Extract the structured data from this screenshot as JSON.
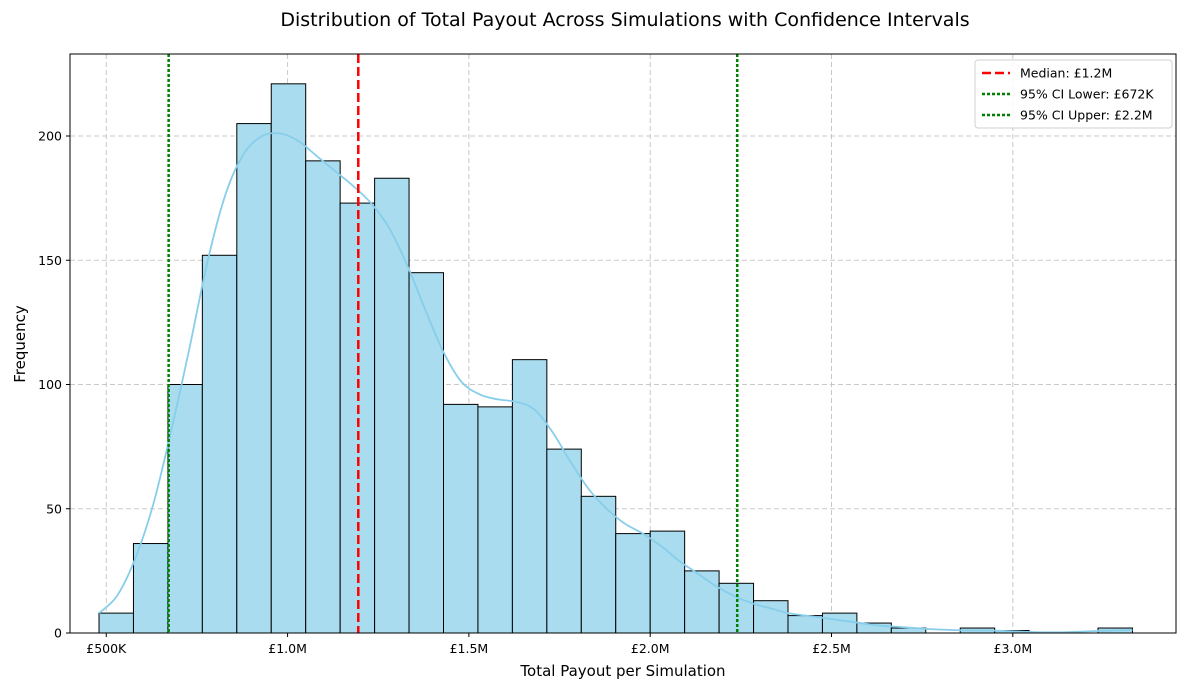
{
  "chart_data": {
    "type": "bar",
    "subtype": "histogram",
    "title": "Distribution of Total Payout Across Simulations with Confidence Intervals",
    "xlabel": "Total Payout per Simulation",
    "ylabel": "Frequency",
    "xlim": [
      400000,
      3450000
    ],
    "ylim": [
      0,
      233
    ],
    "grid": true,
    "grid_style": "dashed",
    "legend_position": "top-right",
    "x_ticks": [
      {
        "value": 500000,
        "label": "£500K"
      },
      {
        "value": 1000000,
        "label": "£1.0M"
      },
      {
        "value": 1500000,
        "label": "£1.5M"
      },
      {
        "value": 2000000,
        "label": "£2.0M"
      },
      {
        "value": 2500000,
        "label": "£2.5M"
      },
      {
        "value": 3000000,
        "label": "£3.0M"
      }
    ],
    "y_ticks": [
      {
        "value": 0,
        "label": "0"
      },
      {
        "value": 50,
        "label": "50"
      },
      {
        "value": 100,
        "label": "100"
      },
      {
        "value": 150,
        "label": "150"
      },
      {
        "value": 200,
        "label": "200"
      }
    ],
    "bins": [
      {
        "x0": 480000,
        "x1": 575000,
        "count": 8
      },
      {
        "x0": 575000,
        "x1": 670000,
        "count": 36
      },
      {
        "x0": 670000,
        "x1": 765000,
        "count": 100
      },
      {
        "x0": 765000,
        "x1": 860000,
        "count": 152
      },
      {
        "x0": 860000,
        "x1": 955000,
        "count": 205
      },
      {
        "x0": 955000,
        "x1": 1050000,
        "count": 221
      },
      {
        "x0": 1050000,
        "x1": 1145000,
        "count": 190
      },
      {
        "x0": 1145000,
        "x1": 1240000,
        "count": 173
      },
      {
        "x0": 1240000,
        "x1": 1335000,
        "count": 183
      },
      {
        "x0": 1335000,
        "x1": 1430000,
        "count": 145
      },
      {
        "x0": 1430000,
        "x1": 1525000,
        "count": 92
      },
      {
        "x0": 1525000,
        "x1": 1620000,
        "count": 91
      },
      {
        "x0": 1620000,
        "x1": 1715000,
        "count": 110
      },
      {
        "x0": 1715000,
        "x1": 1810000,
        "count": 74
      },
      {
        "x0": 1810000,
        "x1": 1905000,
        "count": 55
      },
      {
        "x0": 1905000,
        "x1": 2000000,
        "count": 40
      },
      {
        "x0": 2000000,
        "x1": 2095000,
        "count": 41
      },
      {
        "x0": 2095000,
        "x1": 2190000,
        "count": 25
      },
      {
        "x0": 2190000,
        "x1": 2285000,
        "count": 20
      },
      {
        "x0": 2285000,
        "x1": 2380000,
        "count": 13
      },
      {
        "x0": 2380000,
        "x1": 2475000,
        "count": 7
      },
      {
        "x0": 2475000,
        "x1": 2570000,
        "count": 8
      },
      {
        "x0": 2570000,
        "x1": 2665000,
        "count": 4
      },
      {
        "x0": 2665000,
        "x1": 2760000,
        "count": 2
      },
      {
        "x0": 2760000,
        "x1": 2855000,
        "count": 0
      },
      {
        "x0": 2855000,
        "x1": 2950000,
        "count": 2
      },
      {
        "x0": 2950000,
        "x1": 3045000,
        "count": 1
      },
      {
        "x0": 3045000,
        "x1": 3140000,
        "count": 0
      },
      {
        "x0": 3140000,
        "x1": 3235000,
        "count": 0
      },
      {
        "x0": 3235000,
        "x1": 3330000,
        "count": 2
      }
    ],
    "kde": {
      "x": [
        480000,
        530000,
        580000,
        630000,
        680000,
        730000,
        780000,
        830000,
        880000,
        930000,
        980000,
        1030000,
        1080000,
        1130000,
        1180000,
        1230000,
        1280000,
        1330000,
        1380000,
        1430000,
        1480000,
        1530000,
        1580000,
        1630000,
        1680000,
        1730000,
        1780000,
        1830000,
        1880000,
        1930000,
        1980000,
        2030000,
        2080000,
        2130000,
        2180000,
        2230000,
        2280000,
        2330000,
        2380000,
        2430000,
        2480000,
        2530000,
        2580000,
        2630000,
        2680000,
        2730000,
        2780000,
        2830000,
        2880000,
        2930000,
        2980000,
        3030000,
        3080000,
        3130000,
        3180000,
        3230000,
        3280000,
        3330000
      ],
      "y": [
        8,
        15,
        30,
        52,
        82,
        115,
        150,
        177,
        193,
        200,
        201,
        198,
        192,
        186,
        180,
        173,
        163,
        148,
        130,
        113,
        101,
        96,
        94,
        93,
        90,
        81,
        69,
        58,
        50,
        44,
        40,
        35,
        29,
        24,
        19,
        15,
        12,
        10,
        8,
        7,
        6,
        5,
        4,
        3,
        2.5,
        2,
        1.5,
        1.2,
        1,
        1,
        0.8,
        0.5,
        0.3,
        0.3,
        0.5,
        0.8,
        1,
        1.2
      ]
    },
    "vlines": [
      {
        "value": 1195000,
        "label": "Median: £1.2M",
        "color": "#ff0000",
        "style": "dashed"
      },
      {
        "value": 672000,
        "label": "95% CI Lower: £672K",
        "color": "#008000",
        "style": "dotted"
      },
      {
        "value": 2240000,
        "label": "95% CI Upper: £2.2M",
        "color": "#008000",
        "style": "dotted"
      }
    ],
    "colors": {
      "bar_fill": "#a8dcee",
      "bar_edge": "#000000",
      "kde": "#87ceeb",
      "grid": "#c8c8c8"
    }
  }
}
